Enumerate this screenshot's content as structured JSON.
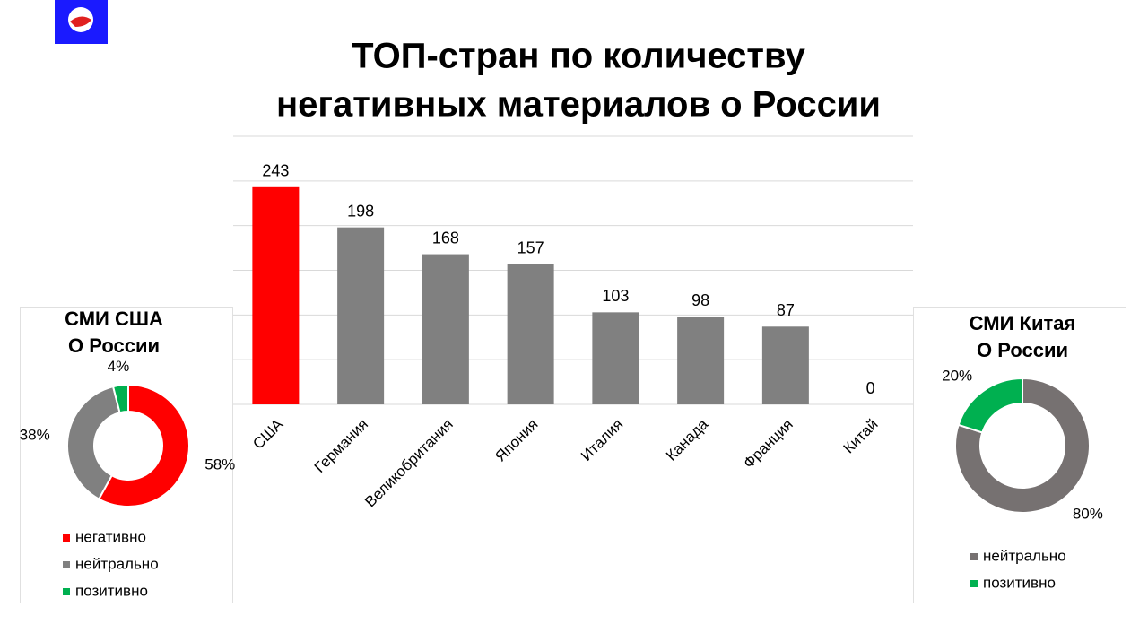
{
  "chart_data": [
    {
      "type": "bar",
      "title": [
        "ТОП-стран по количеству",
        "негативных материалов о России"
      ],
      "categories": [
        "США",
        "Германия",
        "Великобритания",
        "Япония",
        "Италия",
        "Канада",
        "Франция",
        "Китай"
      ],
      "values": [
        243,
        198,
        168,
        157,
        103,
        98,
        87,
        0
      ],
      "colors": [
        "#ff0000",
        "#808080",
        "#808080",
        "#808080",
        "#808080",
        "#808080",
        "#808080",
        "#808080"
      ],
      "ylim": [
        0,
        300
      ],
      "yticks": [
        0,
        50,
        100,
        150,
        200,
        250,
        300
      ],
      "grid": true
    },
    {
      "type": "pie",
      "title": [
        "СМИ США",
        "О России"
      ],
      "labels": [
        "негативно",
        "нейтрально",
        "позитивно"
      ],
      "values": [
        58,
        38,
        4
      ],
      "value_labels": [
        "58%",
        "38%",
        "4%"
      ],
      "colors": [
        "#ff0000",
        "#808080",
        "#00b050"
      ]
    },
    {
      "type": "pie",
      "title": [
        "СМИ Китая",
        "О России"
      ],
      "labels": [
        "нейтрально",
        "позитивно"
      ],
      "values": [
        80,
        20
      ],
      "value_labels": [
        "80%",
        "20%"
      ],
      "colors": [
        "#767171",
        "#00b050"
      ]
    }
  ]
}
